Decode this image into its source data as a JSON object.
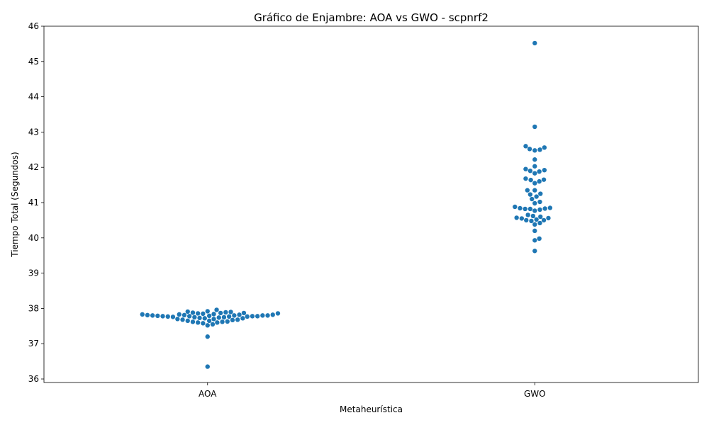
{
  "chart_data": {
    "type": "scatter",
    "subtype": "swarm",
    "title": "Gráfico de Enjambre: AOA vs GWO - scpnrf2",
    "xlabel": "Metaheurística",
    "ylabel": "Tiempo Total (Segundos)",
    "categories": [
      "AOA",
      "GWO"
    ],
    "ylim": [
      35.9,
      46.0
    ],
    "yticks": [
      "36",
      "37",
      "38",
      "39",
      "40",
      "41",
      "42",
      "43",
      "44",
      "45",
      "46"
    ],
    "grid": false,
    "point_color": "#1f77b4",
    "series": [
      {
        "category": "AOA",
        "values": [
          36.35,
          37.2,
          37.52,
          37.55,
          37.58,
          37.6,
          37.6,
          37.62,
          37.62,
          37.63,
          37.65,
          37.65,
          37.67,
          37.68,
          37.68,
          37.7,
          37.7,
          37.72,
          37.72,
          37.73,
          37.74,
          37.75,
          37.75,
          37.76,
          37.77,
          37.77,
          37.77,
          37.78,
          37.78,
          37.78,
          37.78,
          37.79,
          37.79,
          37.8,
          37.8,
          37.8,
          37.8,
          37.81,
          37.81,
          37.82,
          37.82,
          37.83,
          37.83,
          37.84,
          37.85,
          37.86,
          37.86,
          37.87,
          37.87,
          37.88,
          37.89,
          37.9,
          37.91,
          37.92,
          37.96
        ]
      },
      {
        "category": "GWO",
        "values": [
          39.63,
          39.93,
          39.98,
          40.2,
          40.38,
          40.42,
          40.48,
          40.5,
          40.5,
          40.52,
          40.55,
          40.56,
          40.57,
          40.6,
          40.62,
          40.65,
          40.77,
          40.8,
          40.82,
          40.82,
          40.83,
          40.84,
          40.85,
          40.88,
          40.98,
          41.02,
          41.1,
          41.17,
          41.23,
          41.25,
          41.35,
          41.35,
          41.55,
          41.6,
          41.64,
          41.65,
          41.68,
          41.83,
          41.88,
          41.9,
          41.92,
          41.95,
          42.03,
          42.22,
          42.48,
          42.5,
          42.52,
          42.56,
          42.6,
          43.15,
          45.52
        ]
      }
    ]
  }
}
